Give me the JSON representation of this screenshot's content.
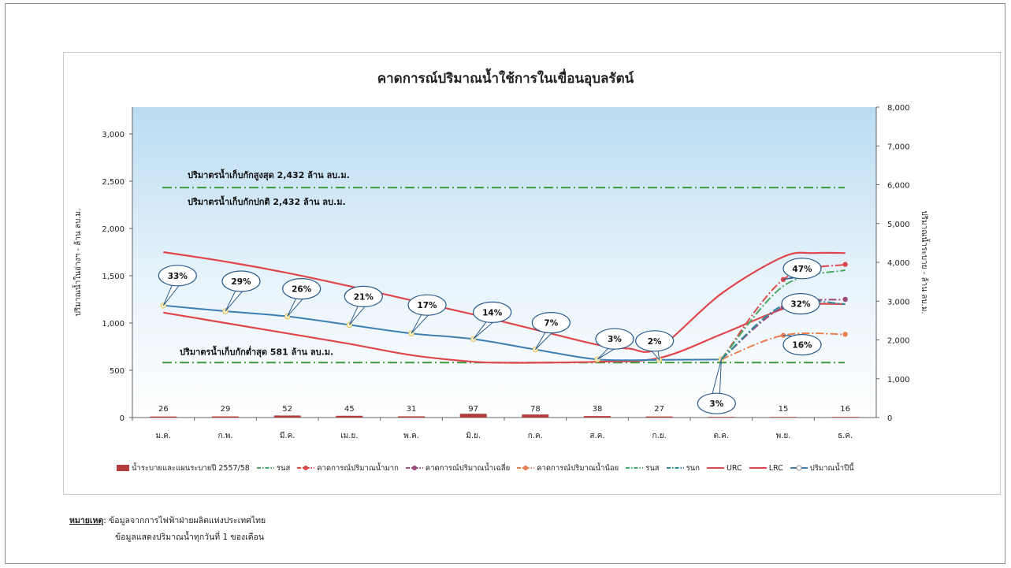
{
  "chart_data": {
    "type": "line",
    "title": "คาดการณ์ปริมาณน้ำใช้การในเขื่อนอุบลรัตน์",
    "ylabel_left": "ปริมาณน้ำในอ่างฯ - ล้าน ลบ.ม.",
    "ylabel_right": "ปริมาณน้ำระบาย - ล้าน ลบ.ม.",
    "categories": [
      "ม.ค.",
      "ก.พ.",
      "มี.ค.",
      "เม.ย.",
      "พ.ค.",
      "มิ.ย.",
      "ก.ค.",
      "ส.ค.",
      "ก.ย.",
      "ต.ค.",
      "พ.ย.",
      "ธ.ค."
    ],
    "yticks_left": [
      "0",
      "500",
      "1,000",
      "1,500",
      "2,000",
      "2,500",
      "3,000"
    ],
    "yticks_right": [
      "0",
      "1,000",
      "2,000",
      "3,000",
      "4,000",
      "5,000",
      "6,000",
      "7,000",
      "8,000"
    ],
    "ylim_left": [
      0,
      3000
    ],
    "ylim_right": [
      0,
      8000
    ],
    "release_bars": {
      "name": "น้ำระบายและแผนระบายปี 2557/58",
      "values": [
        26,
        29,
        52,
        45,
        31,
        97,
        78,
        38,
        27,
        16,
        15,
        16
      ],
      "labels": [
        "26",
        "29",
        "52",
        "45",
        "31",
        "97",
        "78",
        "38",
        "27",
        "16",
        "15",
        "16"
      ]
    },
    "reference_lines": [
      {
        "value": 2432,
        "label": "ปริมาตรน้ำเก็บกักสูงสุด 2,432 ล้าน ลบ.ม."
      },
      {
        "value": 2432,
        "label": "ปริมาตรน้ำเก็บกักปกติ 2,432 ล้าน ลบ.ม."
      },
      {
        "value": 581,
        "label": "ปริมาตรน้ำเก็บกักต่ำสุด 581 ล้าน ลบ.ม."
      }
    ],
    "series": [
      {
        "name": "URC",
        "color": "#e0474c",
        "x": [
          0,
          1,
          2,
          3,
          4,
          5,
          6,
          7,
          7.5,
          8,
          9,
          10,
          10.5,
          11
        ],
        "values": [
          1750,
          1650,
          1530,
          1390,
          1240,
          1090,
          930,
          770,
          730,
          740,
          1310,
          1700,
          1740,
          1740
        ]
      },
      {
        "name": "LRC",
        "color": "#e0474c",
        "x": [
          0,
          1,
          2,
          3,
          4,
          5,
          5.5,
          6,
          7,
          8,
          9,
          10,
          10.5,
          11
        ],
        "values": [
          1110,
          1000,
          890,
          780,
          660,
          590,
          580,
          580,
          590,
          630,
          880,
          1150,
          1200,
          1200
        ]
      },
      {
        "name": "ปริมาณน้ำปีนี้",
        "color": "#3d7fb3",
        "x": [
          0,
          1,
          2,
          3,
          4,
          5,
          6,
          7,
          8,
          9
        ],
        "values": [
          1185,
          1125,
          1070,
          980,
          890,
          830,
          720,
          615,
          610,
          615
        ]
      },
      {
        "name": "คาดการณ์ปริมาณน้ำมาก",
        "color": "#d94a4a",
        "x": [
          9,
          10,
          11
        ],
        "values": [
          615,
          1460,
          1620
        ]
      },
      {
        "name": "คาดการณ์ปริมาณน้ำเฉลี่ย",
        "color": "#9b4b78",
        "x": [
          9,
          10,
          11
        ],
        "values": [
          615,
          1170,
          1250
        ]
      },
      {
        "name": "คาดการณ์ปริมาณน้ำน้อย",
        "color": "#e88050",
        "x": [
          9,
          10,
          11
        ],
        "values": [
          615,
          870,
          880
        ]
      },
      {
        "name": "รนส",
        "color": "#4aa865",
        "x": [
          9,
          10,
          11
        ],
        "values": [
          615,
          1390,
          1560
        ]
      },
      {
        "name": "รนก",
        "color": "#2f8e9c",
        "x": [
          9,
          10,
          11
        ],
        "values": [
          615,
          1190,
          1200
        ]
      }
    ],
    "percent_callouts": [
      {
        "x": 0,
        "value": 1185,
        "label": "33%"
      },
      {
        "x": 1,
        "value": 1125,
        "label": "29%"
      },
      {
        "x": 2,
        "value": 1070,
        "label": "26%"
      },
      {
        "x": 3,
        "value": 980,
        "label": "21%"
      },
      {
        "x": 4,
        "value": 890,
        "label": "17%"
      },
      {
        "x": 5,
        "value": 830,
        "label": "14%"
      },
      {
        "x": 6,
        "value": 720,
        "label": "7%"
      },
      {
        "x": 7,
        "value": 615,
        "label": "3%"
      },
      {
        "x": 8,
        "value": 610,
        "label": "2%"
      },
      {
        "x": 9,
        "value": 615,
        "label": "3%"
      },
      {
        "x": 10,
        "value": 1460,
        "label": "47%"
      },
      {
        "x": 10,
        "value": 1170,
        "label": "32%"
      },
      {
        "x": 10,
        "value": 870,
        "label": "16%"
      }
    ],
    "legend": [
      {
        "label": "น้ำระบายและแผนระบายปี 2557/58",
        "kind": "bar",
        "color": "#b43c3c"
      },
      {
        "label": "รนส",
        "kind": "dashdot",
        "color": "#4aa865"
      },
      {
        "label": "คาดการณ์ปริมาณน้ำมาก",
        "kind": "dash-marker",
        "color": "#d94a4a"
      },
      {
        "label": "คาดการณ์ปริมาณน้ำเฉลี่ย",
        "kind": "dash-marker",
        "color": "#9b4b78"
      },
      {
        "label": "คาดการณ์ปริมาณน้ำน้อย",
        "kind": "dash-marker",
        "color": "#e88050"
      },
      {
        "label": "รนส",
        "kind": "dashdot",
        "color": "#4aa865"
      },
      {
        "label": "รนก",
        "kind": "dashdot",
        "color": "#2f8e9c"
      },
      {
        "label": "URC",
        "kind": "solid",
        "color": "#e0474c"
      },
      {
        "label": "LRC",
        "kind": "solid",
        "color": "#e0474c"
      },
      {
        "label": "ปริมาณน้ำปีนี้",
        "kind": "solid-marker",
        "color": "#3d7fb3"
      }
    ]
  },
  "notes": {
    "label": "หมายเหตุ",
    "line1": ": ข้อมูลจากการไฟฟ้าฝ่ายผลิตแห่งประเทศไทย",
    "line2": "ข้อมูลแสดงปริมาณน้ำทุกวันที่ 1 ของเดือน"
  }
}
